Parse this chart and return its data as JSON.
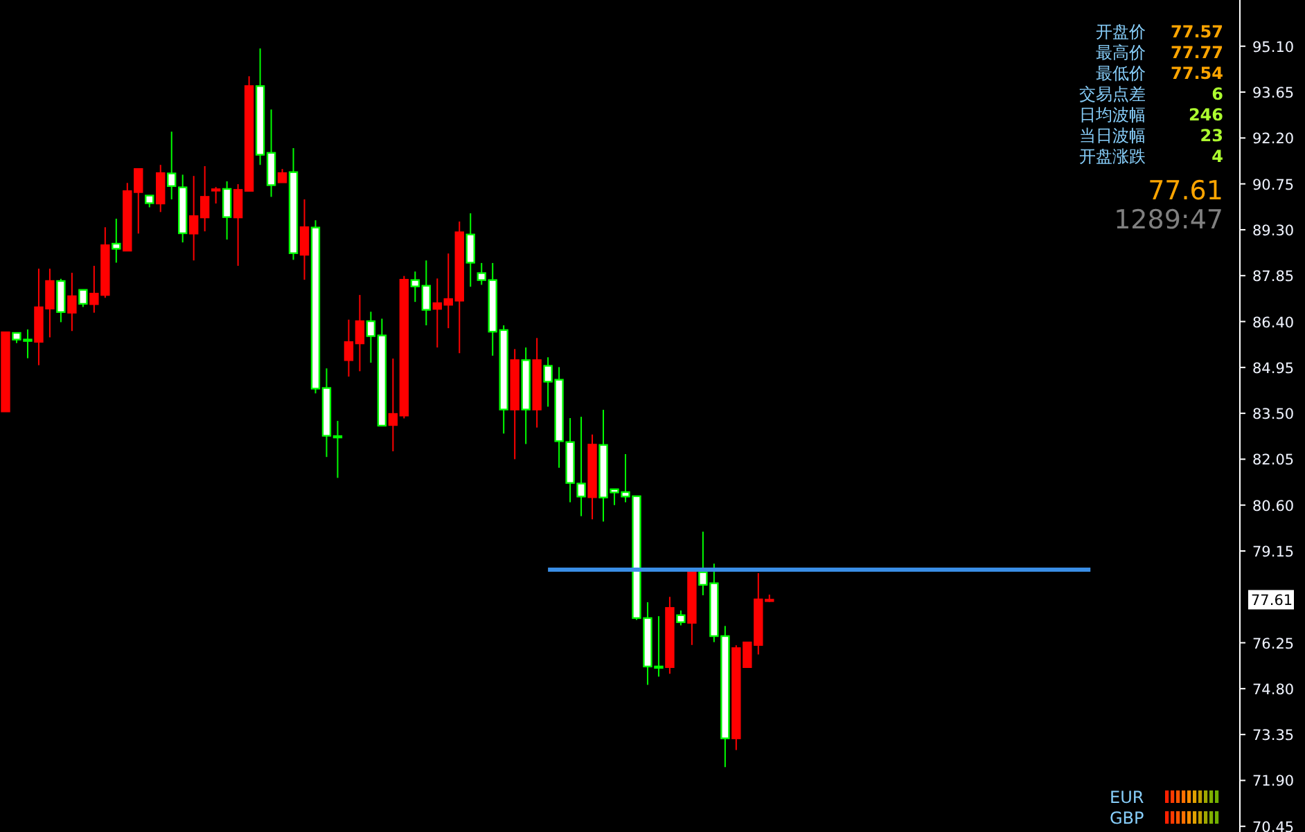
{
  "chart_data": {
    "type": "candlestick",
    "categories": [
      null,
      null,
      null,
      null,
      null,
      null,
      null,
      null,
      null,
      null,
      null,
      null,
      null,
      null,
      null,
      null,
      null,
      null,
      null,
      null,
      null,
      null,
      null,
      null,
      null,
      null,
      null,
      null,
      null,
      null,
      null,
      null,
      null,
      null,
      null,
      null,
      null,
      null,
      null,
      null,
      null,
      null,
      null,
      null,
      null,
      null,
      null,
      null,
      null,
      null,
      null,
      null,
      null,
      null,
      null,
      null,
      null,
      null,
      null,
      null,
      null,
      null,
      null,
      null,
      null,
      null,
      null,
      null,
      null,
      null,
      null,
      null,
      null,
      null,
      null,
      null,
      null,
      null,
      null,
      null,
      null,
      null,
      null,
      null,
      null,
      null,
      null,
      null,
      null,
      null,
      null,
      null,
      null,
      null,
      null,
      null,
      null,
      null,
      null,
      null,
      null,
      null,
      null,
      null,
      null,
      null,
      null,
      null,
      null,
      null,
      null,
      null
    ],
    "ohlc": [
      [
        83.56,
        86.06,
        83.56,
        86.06
      ],
      [
        86.04,
        86.04,
        85.72,
        85.83
      ],
      [
        85.83,
        86.15,
        85.24,
        85.83
      ],
      [
        85.76,
        88.07,
        85.02,
        86.85
      ],
      [
        86.81,
        88.07,
        85.9,
        87.68
      ],
      [
        87.68,
        87.75,
        86.38,
        86.7
      ],
      [
        86.68,
        87.94,
        86.1,
        87.2
      ],
      [
        87.4,
        87.4,
        86.86,
        86.96
      ],
      [
        86.95,
        88.16,
        86.68,
        87.28
      ],
      [
        87.24,
        89.38,
        87.15,
        88.81
      ],
      [
        88.86,
        89.65,
        88.26,
        88.7
      ],
      [
        88.64,
        90.78,
        88.64,
        90.52
      ],
      [
        90.49,
        91.22,
        89.18,
        91.22
      ],
      [
        90.38,
        90.38,
        90.01,
        90.14
      ],
      [
        90.13,
        91.35,
        89.86,
        91.09
      ],
      [
        91.08,
        92.4,
        90.26,
        90.68
      ],
      [
        90.64,
        91.04,
        88.9,
        89.19
      ],
      [
        89.18,
        91.0,
        88.33,
        89.73
      ],
      [
        89.69,
        91.31,
        89.25,
        90.34
      ],
      [
        90.55,
        90.65,
        90.13,
        90.58
      ],
      [
        90.59,
        90.83,
        88.99,
        89.7
      ],
      [
        89.69,
        90.74,
        88.16,
        90.56
      ],
      [
        90.53,
        94.15,
        90.53,
        93.84
      ],
      [
        93.84,
        95.03,
        91.35,
        91.67
      ],
      [
        91.73,
        93.1,
        90.34,
        90.71
      ],
      [
        90.8,
        91.22,
        90.8,
        91.09
      ],
      [
        91.12,
        91.88,
        88.35,
        88.56
      ],
      [
        88.51,
        90.26,
        87.72,
        89.38
      ],
      [
        89.37,
        89.6,
        84.13,
        84.28
      ],
      [
        84.3,
        84.92,
        82.12,
        82.79
      ],
      [
        82.78,
        83.26,
        81.46,
        82.78
      ],
      [
        85.18,
        86.46,
        84.66,
        85.75
      ],
      [
        85.71,
        87.24,
        84.83,
        86.41
      ],
      [
        86.41,
        86.71,
        85.1,
        85.94
      ],
      [
        85.96,
        86.49,
        83.11,
        83.11
      ],
      [
        83.13,
        85.23,
        82.3,
        83.48
      ],
      [
        83.43,
        87.84,
        83.34,
        87.72
      ],
      [
        87.71,
        87.98,
        87.02,
        87.51
      ],
      [
        87.53,
        88.33,
        86.28,
        86.77
      ],
      [
        86.8,
        87.76,
        85.58,
        86.98
      ],
      [
        86.93,
        88.55,
        86.19,
        87.11
      ],
      [
        87.06,
        89.56,
        85.4,
        89.22
      ],
      [
        89.15,
        89.82,
        87.5,
        88.26
      ],
      [
        87.93,
        88.25,
        87.56,
        87.71
      ],
      [
        87.71,
        88.25,
        85.32,
        86.08
      ],
      [
        86.13,
        86.28,
        82.86,
        83.62
      ],
      [
        83.62,
        85.53,
        82.05,
        85.18
      ],
      [
        85.18,
        85.58,
        82.53,
        83.62
      ],
      [
        83.62,
        85.88,
        83.05,
        85.18
      ],
      [
        85.0,
        85.27,
        83.71,
        84.5
      ],
      [
        84.56,
        84.96,
        81.78,
        82.62
      ],
      [
        82.59,
        83.35,
        80.69,
        81.3
      ],
      [
        81.28,
        83.39,
        80.25,
        80.87
      ],
      [
        80.85,
        82.83,
        80.15,
        82.51
      ],
      [
        82.5,
        83.61,
        80.08,
        80.84
      ],
      [
        81.1,
        81.1,
        80.6,
        81.0
      ],
      [
        81.01,
        82.21,
        80.69,
        80.87
      ],
      [
        80.88,
        80.88,
        76.97,
        77.03
      ],
      [
        77.03,
        77.53,
        74.92,
        75.5
      ],
      [
        75.5,
        77.09,
        75.18,
        75.5
      ],
      [
        75.48,
        77.7,
        75.27,
        77.35
      ],
      [
        77.12,
        77.27,
        76.8,
        76.9
      ],
      [
        76.88,
        78.55,
        76.18,
        78.55
      ],
      [
        78.48,
        79.76,
        77.75,
        78.08
      ],
      [
        78.13,
        78.75,
        76.27,
        76.46
      ],
      [
        76.46,
        76.78,
        72.32,
        73.23
      ],
      [
        73.23,
        76.17,
        72.86,
        76.08
      ],
      [
        75.48,
        76.26,
        75.48,
        76.26
      ],
      [
        76.18,
        78.45,
        75.88,
        77.62
      ],
      [
        77.57,
        77.77,
        77.54,
        77.61
      ],
      null,
      null,
      null,
      null,
      null,
      null,
      null,
      null,
      null,
      null,
      null,
      null,
      null,
      null,
      null,
      null,
      null,
      null,
      null,
      null,
      null,
      null,
      null,
      null,
      null,
      null,
      null,
      null,
      null,
      null,
      null,
      null,
      null,
      null,
      null,
      null,
      null,
      null,
      null,
      null,
      null,
      null
    ],
    "series": [
      {
        "type": "line",
        "color": "#3a8ee6",
        "values": [
          null,
          null,
          null,
          null,
          null,
          null,
          null,
          null,
          null,
          null,
          null,
          null,
          null,
          null,
          null,
          null,
          null,
          null,
          null,
          null,
          null,
          null,
          null,
          null,
          null,
          null,
          null,
          null,
          null,
          null,
          null,
          null,
          null,
          null,
          null,
          null,
          null,
          null,
          null,
          null,
          null,
          null,
          null,
          null,
          null,
          null,
          null,
          null,
          null,
          78.56,
          78.56,
          78.56,
          78.56,
          78.56,
          78.56,
          78.56,
          78.56,
          78.56,
          78.56,
          78.56,
          78.56,
          78.56,
          78.56,
          78.56,
          78.56,
          78.56,
          78.56,
          78.56,
          78.56,
          78.56,
          78.56,
          78.56,
          78.56,
          78.56,
          78.56,
          78.56,
          78.56,
          78.56,
          78.56,
          78.56,
          78.56,
          78.56,
          78.56,
          78.56,
          78.56,
          78.56,
          78.56,
          78.56,
          78.56,
          78.56,
          78.56,
          78.56,
          78.56,
          78.56,
          78.56,
          78.56,
          78.56,
          78.56,
          78.56,
          null,
          null,
          null,
          null,
          null,
          null,
          null,
          null,
          null,
          null,
          null,
          null,
          null
        ]
      }
    ],
    "ylim": [
      70.27,
      96.56
    ],
    "yticks": [
      {
        "value": 95.1,
        "label": "95.10"
      },
      {
        "value": 93.65,
        "label": "93.65"
      },
      {
        "value": 92.2,
        "label": "92.20"
      },
      {
        "value": 90.75,
        "label": "90.75"
      },
      {
        "value": 89.3,
        "label": "89.30"
      },
      {
        "value": 87.85,
        "label": "87.85"
      },
      {
        "value": 86.4,
        "label": "86.40"
      },
      {
        "value": 84.95,
        "label": "84.95"
      },
      {
        "value": 83.5,
        "label": "83.50"
      },
      {
        "value": 82.05,
        "label": "82.05"
      },
      {
        "value": 80.6,
        "label": "80.60"
      },
      {
        "value": 79.15,
        "label": "79.15"
      },
      {
        "value": 76.25,
        "label": "76.25"
      },
      {
        "value": 74.8,
        "label": "74.80"
      },
      {
        "value": 73.35,
        "label": "73.35"
      },
      {
        "value": 71.9,
        "label": "71.90"
      },
      {
        "value": 70.45,
        "label": "70.45"
      }
    ],
    "annotations": [
      "开盘价",
      "77.57",
      "最高价",
      "77.77",
      "最低价",
      "77.54",
      "交易点差",
      "6",
      "日均波幅",
      "246",
      "当日波幅",
      "23",
      "开盘涨跌",
      "4",
      "77.61",
      "1289:47",
      "77.61",
      "EUR",
      "GBP"
    ]
  }
}
